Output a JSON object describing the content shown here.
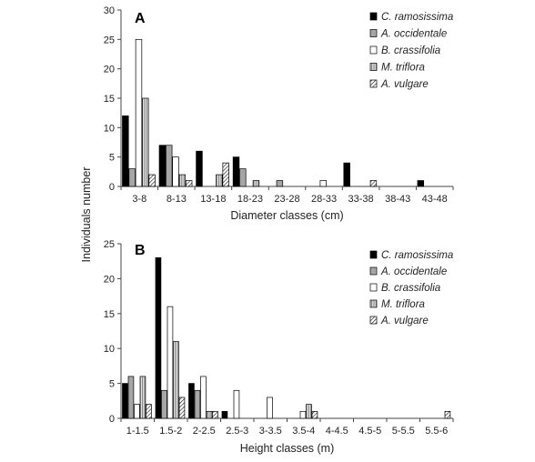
{
  "figure": {
    "shared_ylabel": "Individuals number"
  },
  "chart_data": [
    {
      "type": "bar",
      "panel_label": "A",
      "xlabel": "Diameter classes (cm)",
      "ylabel": "Individuals number",
      "ylim": [
        0,
        30
      ],
      "yticks": [
        0,
        5,
        10,
        15,
        20,
        25,
        30
      ],
      "grid": false,
      "legend_position": "top-right",
      "categories": [
        "3-8",
        "8-13",
        "13-18",
        "18-23",
        "23-28",
        "28-33",
        "33-38",
        "38-43",
        "43-48"
      ],
      "series": [
        {
          "name": "C. ramosissima",
          "values": [
            12,
            7,
            6,
            5,
            0,
            0,
            4,
            0,
            1
          ]
        },
        {
          "name": "A. occidentale",
          "values": [
            3,
            7,
            0,
            3,
            1,
            0,
            0,
            0,
            0
          ]
        },
        {
          "name": "B. crassifolia",
          "values": [
            25,
            5,
            0,
            0,
            0,
            1,
            0,
            0,
            0
          ]
        },
        {
          "name": "M. triflora",
          "values": [
            15,
            2,
            2,
            1,
            0,
            0,
            0,
            0,
            0
          ]
        },
        {
          "name": "A. vulgare",
          "values": [
            2,
            1,
            4,
            0,
            0,
            0,
            1,
            0,
            0
          ]
        }
      ]
    },
    {
      "type": "bar",
      "panel_label": "B",
      "xlabel": "Height classes (m)",
      "ylabel": "Individuals number",
      "ylim": [
        0,
        25
      ],
      "yticks": [
        0,
        5,
        10,
        15,
        20,
        25
      ],
      "grid": false,
      "legend_position": "top-right",
      "categories": [
        "1-1.5",
        "1.5-2",
        "2-2.5",
        "2.5-3",
        "3-3.5",
        "3.5-4",
        "4-4.5",
        "4.5-5",
        "5-5.5",
        "5.5-6"
      ],
      "series": [
        {
          "name": "C. ramosissima",
          "values": [
            5,
            23,
            5,
            1,
            0,
            0,
            0,
            0,
            0,
            0
          ]
        },
        {
          "name": "A. occidentale",
          "values": [
            6,
            4,
            4,
            0,
            0,
            0,
            0,
            0,
            0,
            0
          ]
        },
        {
          "name": "B. crassifolia",
          "values": [
            2,
            16,
            6,
            4,
            3,
            1,
            0,
            0,
            0,
            0
          ]
        },
        {
          "name": "M. triflora",
          "values": [
            6,
            11,
            1,
            0,
            0,
            2,
            0,
            0,
            0,
            0
          ]
        },
        {
          "name": "A. vulgare",
          "values": [
            2,
            3,
            1,
            0,
            0,
            1,
            0,
            0,
            0,
            1
          ]
        }
      ]
    }
  ],
  "series_styles": [
    {
      "name": "C. ramosissima",
      "fill": "#000000",
      "pattern": "solid"
    },
    {
      "name": "A. occidentale",
      "fill": "#a6a6a6",
      "pattern": "solid"
    },
    {
      "name": "B. crassifolia",
      "fill": "#ffffff",
      "pattern": "solid"
    },
    {
      "name": "M. triflora",
      "fill": "#d4d4d4",
      "pattern": "vertical-lines"
    },
    {
      "name": "A. vulgare",
      "fill": "#ffffff",
      "pattern": "diagonal-hatch"
    }
  ]
}
